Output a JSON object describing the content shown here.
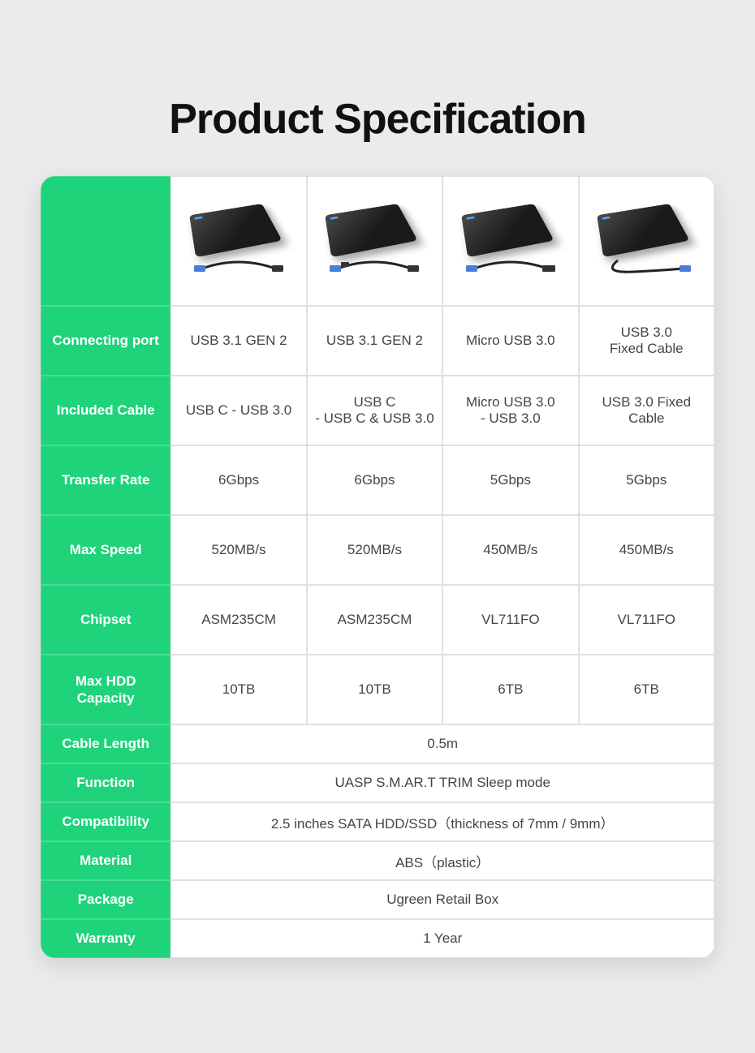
{
  "title": "Product Specification",
  "colors": {
    "page_bg": "#ebebeb",
    "accent": "#1ed37a",
    "label_text": "#ffffff",
    "cell_text": "#444444",
    "border": "#e0e0e0",
    "device_gradient_light": "#4a4a4a",
    "device_gradient_dark": "#1a1a1a",
    "device_led": "#4aa8ff",
    "cable_plug": "#4a7bdd"
  },
  "typography": {
    "title_fontsize": 52,
    "title_weight": 900,
    "label_fontsize": 17,
    "label_weight": 700,
    "cell_fontsize": 17
  },
  "layout": {
    "table_border_radius": 18,
    "data_row_height": 86,
    "short_row_height": 48,
    "label_col_width": 160,
    "data_col_width": 167
  },
  "rows": {
    "connecting_port": {
      "label": "Connecting port",
      "values": [
        "USB 3.1 GEN 2",
        "USB 3.1 GEN 2",
        "Micro USB 3.0",
        "USB 3.0\nFixed Cable"
      ]
    },
    "included_cable": {
      "label": "Included Cable",
      "values": [
        "USB C - USB 3.0",
        "USB C\n- USB C & USB 3.0",
        "Micro USB 3.0\n- USB 3.0",
        "USB 3.0 Fixed\nCable"
      ]
    },
    "transfer_rate": {
      "label": "Transfer Rate",
      "values": [
        "6Gbps",
        "6Gbps",
        "5Gbps",
        "5Gbps"
      ]
    },
    "max_speed": {
      "label": "Max Speed",
      "values": [
        "520MB/s",
        "520MB/s",
        "450MB/s",
        "450MB/s"
      ]
    },
    "chipset": {
      "label": "Chipset",
      "values": [
        "ASM235CM",
        "ASM235CM",
        "VL711FO",
        "VL711FO"
      ]
    },
    "max_hdd": {
      "label": "Max HDD\nCapacity",
      "values": [
        "10TB",
        "10TB",
        "6TB",
        "6TB"
      ]
    },
    "cable_length": {
      "label": "Cable Length",
      "merged": "0.5m"
    },
    "function": {
      "label": "Function",
      "merged": "UASP   S.M.AR.T   TRIM   Sleep mode"
    },
    "compatibility": {
      "label": "Compatibility",
      "merged": "2.5 inches SATA HDD/SSD（thickness of 7mm / 9mm）"
    },
    "material": {
      "label": "Material",
      "merged": "ABS（plastic）"
    },
    "package": {
      "label": "Package",
      "merged": "Ugreen Retail Box"
    },
    "warranty": {
      "label": "Warranty",
      "merged": "1 Year"
    }
  }
}
